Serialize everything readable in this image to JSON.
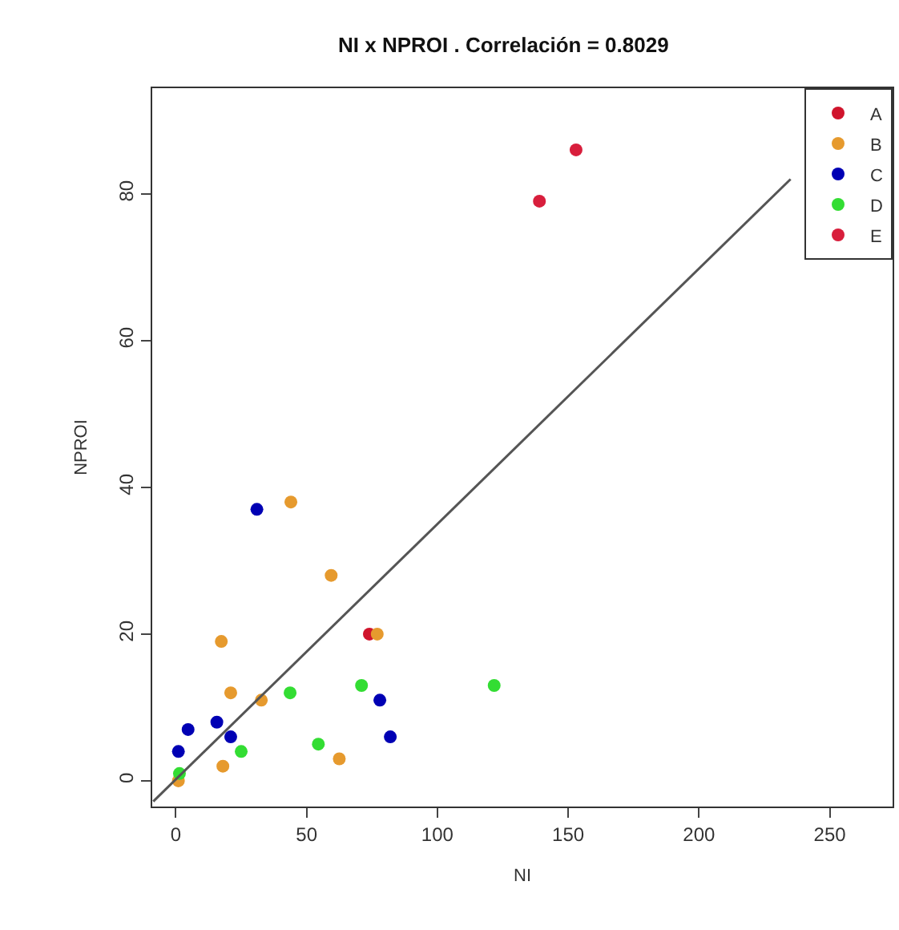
{
  "chart_data": {
    "type": "scatter",
    "title": "NI x NPROI . Correlación = 0.8029",
    "xlabel": "NI",
    "ylabel": "NPROI",
    "xlim": [
      -9,
      274
    ],
    "ylim": [
      -3.5,
      94.4
    ],
    "xticks": [
      0,
      50,
      100,
      150,
      200,
      250
    ],
    "yticks": [
      0,
      20,
      40,
      60,
      80
    ],
    "grid": false,
    "legend": "top right",
    "marker": "circle",
    "series": [
      {
        "name": "A",
        "color": "#d0142c",
        "x": [
          74
        ],
        "values": [
          20
        ]
      },
      {
        "name": "B",
        "color": "#e69a2e",
        "x": [
          44,
          59.4,
          17.4,
          21,
          32.7,
          18,
          62.5,
          1,
          77
        ],
        "values": [
          38,
          28,
          19,
          12,
          11,
          2,
          3,
          0,
          20
        ]
      },
      {
        "name": "C",
        "color": "#0000b4",
        "x": [
          31,
          78,
          82,
          1,
          4.7,
          15.7,
          21
        ],
        "values": [
          37,
          11,
          6,
          4,
          7,
          8,
          6
        ]
      },
      {
        "name": "D",
        "color": "#33dd33",
        "x": [
          43.7,
          71,
          121.7,
          54.5,
          25,
          1.4
        ],
        "values": [
          12,
          13,
          13,
          5,
          4,
          1
        ]
      },
      {
        "name": "E",
        "color": "#d81e3c",
        "x": [
          139,
          153
        ],
        "values": [
          79,
          86
        ]
      },
      {
        "type": "line",
        "marker": "none",
        "color": "#555555",
        "x": [
          -8.6,
          235
        ],
        "values": [
          -2.8,
          82
        ]
      }
    ]
  }
}
